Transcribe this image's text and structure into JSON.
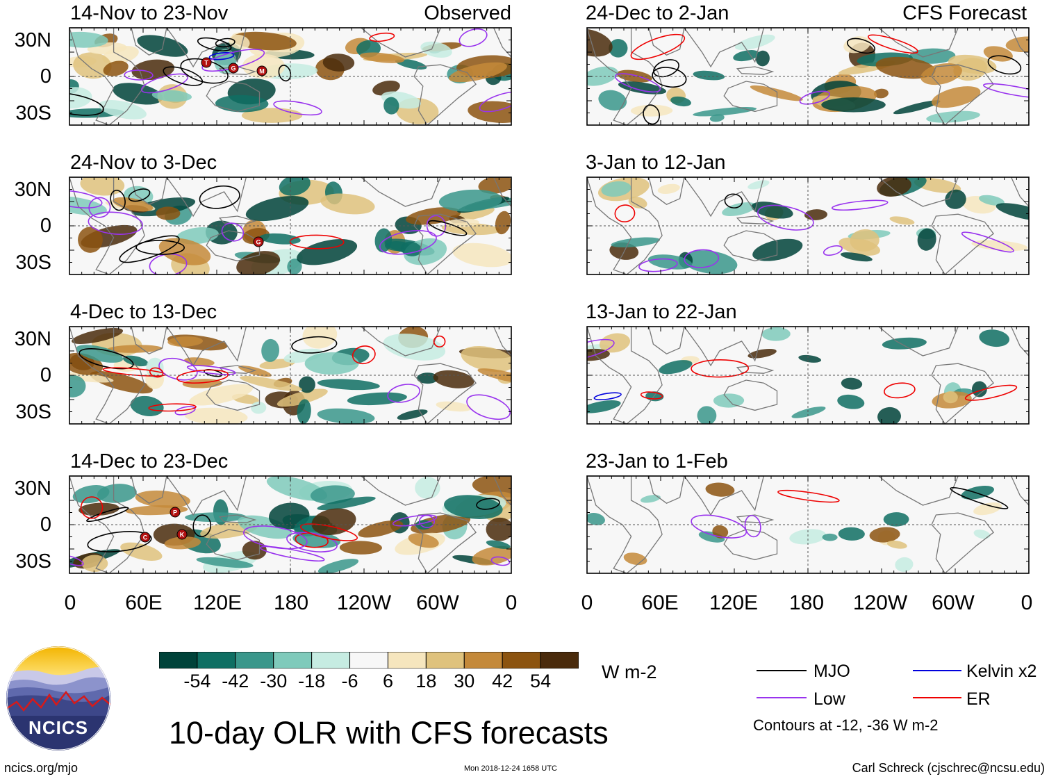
{
  "figure_title": "10-day OLR with CFS forecasts",
  "units": "W m-2",
  "logo": {
    "text": "NCICS",
    "url_text": "ncics.org/mjo"
  },
  "timestamp": "Mon 2018-12-24 1658 UTC",
  "credit": "Carl Schreck (cjschrec@ncsu.edu)",
  "contour_note": "Contours at -12, -36 W m-2",
  "lat_labels": [
    "30N",
    "0",
    "30S"
  ],
  "lon_labels": [
    "0",
    "60E",
    "120E",
    "180",
    "120W",
    "60W",
    "0"
  ],
  "column_tags": {
    "left": "Observed",
    "right": "CFS Forecast"
  },
  "panels": [
    {
      "title": "14-Nov to 23-Nov",
      "column": "Observed"
    },
    {
      "title": "24-Nov to 3-Dec",
      "column": "Observed"
    },
    {
      "title": "4-Dec to 13-Dec",
      "column": "Observed"
    },
    {
      "title": "14-Dec to 23-Dec",
      "column": "Observed"
    },
    {
      "title": "24-Dec to 2-Jan",
      "column": "CFS Forecast"
    },
    {
      "title": "3-Jan to 12-Jan",
      "column": "CFS Forecast"
    },
    {
      "title": "13-Jan to 22-Jan",
      "column": "CFS Forecast"
    },
    {
      "title": "23-Jan to 1-Feb",
      "column": "CFS Forecast"
    }
  ],
  "colorbar": {
    "labels": [
      "-54",
      "-42",
      "-30",
      "-18",
      "-6",
      "6",
      "18",
      "30",
      "42",
      "54"
    ],
    "colors": [
      "#00433a",
      "#0f6f63",
      "#3a978b",
      "#7fcabb",
      "#c6ece2",
      "#f7f7f7",
      "#f6e6be",
      "#dfc27d",
      "#c4893a",
      "#8c5410",
      "#4a2b0c"
    ]
  },
  "legend": [
    {
      "label": "MJO",
      "color": "#000000"
    },
    {
      "label": "Kelvin x2",
      "color": "#0000dd"
    },
    {
      "label": "Low",
      "color": "#9933ee"
    },
    {
      "label": "ER",
      "color": "#ee0000"
    }
  ],
  "storm_markers": {
    "panel_1": [
      "T",
      "G",
      "M"
    ],
    "panel_2": [
      "G"
    ],
    "panel_4": [
      "P",
      "C",
      "K"
    ]
  }
}
